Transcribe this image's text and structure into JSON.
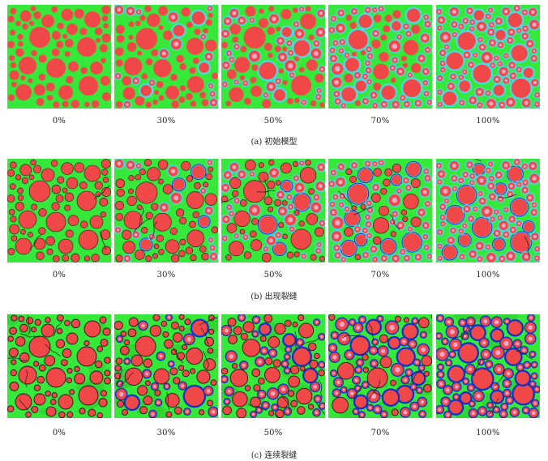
{
  "rows": [
    {
      "id": "a",
      "caption": "(a)  初始模型",
      "stage": 0,
      "labels": [
        "0%",
        "30%",
        "50%",
        "70%",
        "100%"
      ]
    },
    {
      "id": "b",
      "caption": "(b)  出现裂缝",
      "stage": 1,
      "labels": [
        "0%",
        "30%",
        "50%",
        "70%",
        "100%"
      ]
    },
    {
      "id": "c",
      "caption": "(c)  连续裂缝",
      "stage": 2,
      "labels": [
        "0%",
        "30%",
        "50%",
        "70%",
        "100%"
      ]
    }
  ],
  "replacement_ratios": [
    0,
    0.3,
    0.5,
    0.7,
    1.0
  ],
  "colors": {
    "mortar": "#36e83a",
    "mortar_damaged": "#2fd12f",
    "aggregate": "#f04848",
    "old_mortar_ring": "#4fd8e8",
    "crack": "#1a1a1a",
    "damage_ring": "#1030c8",
    "inner_aggregate_highlight": "#f6a6c6"
  }
}
